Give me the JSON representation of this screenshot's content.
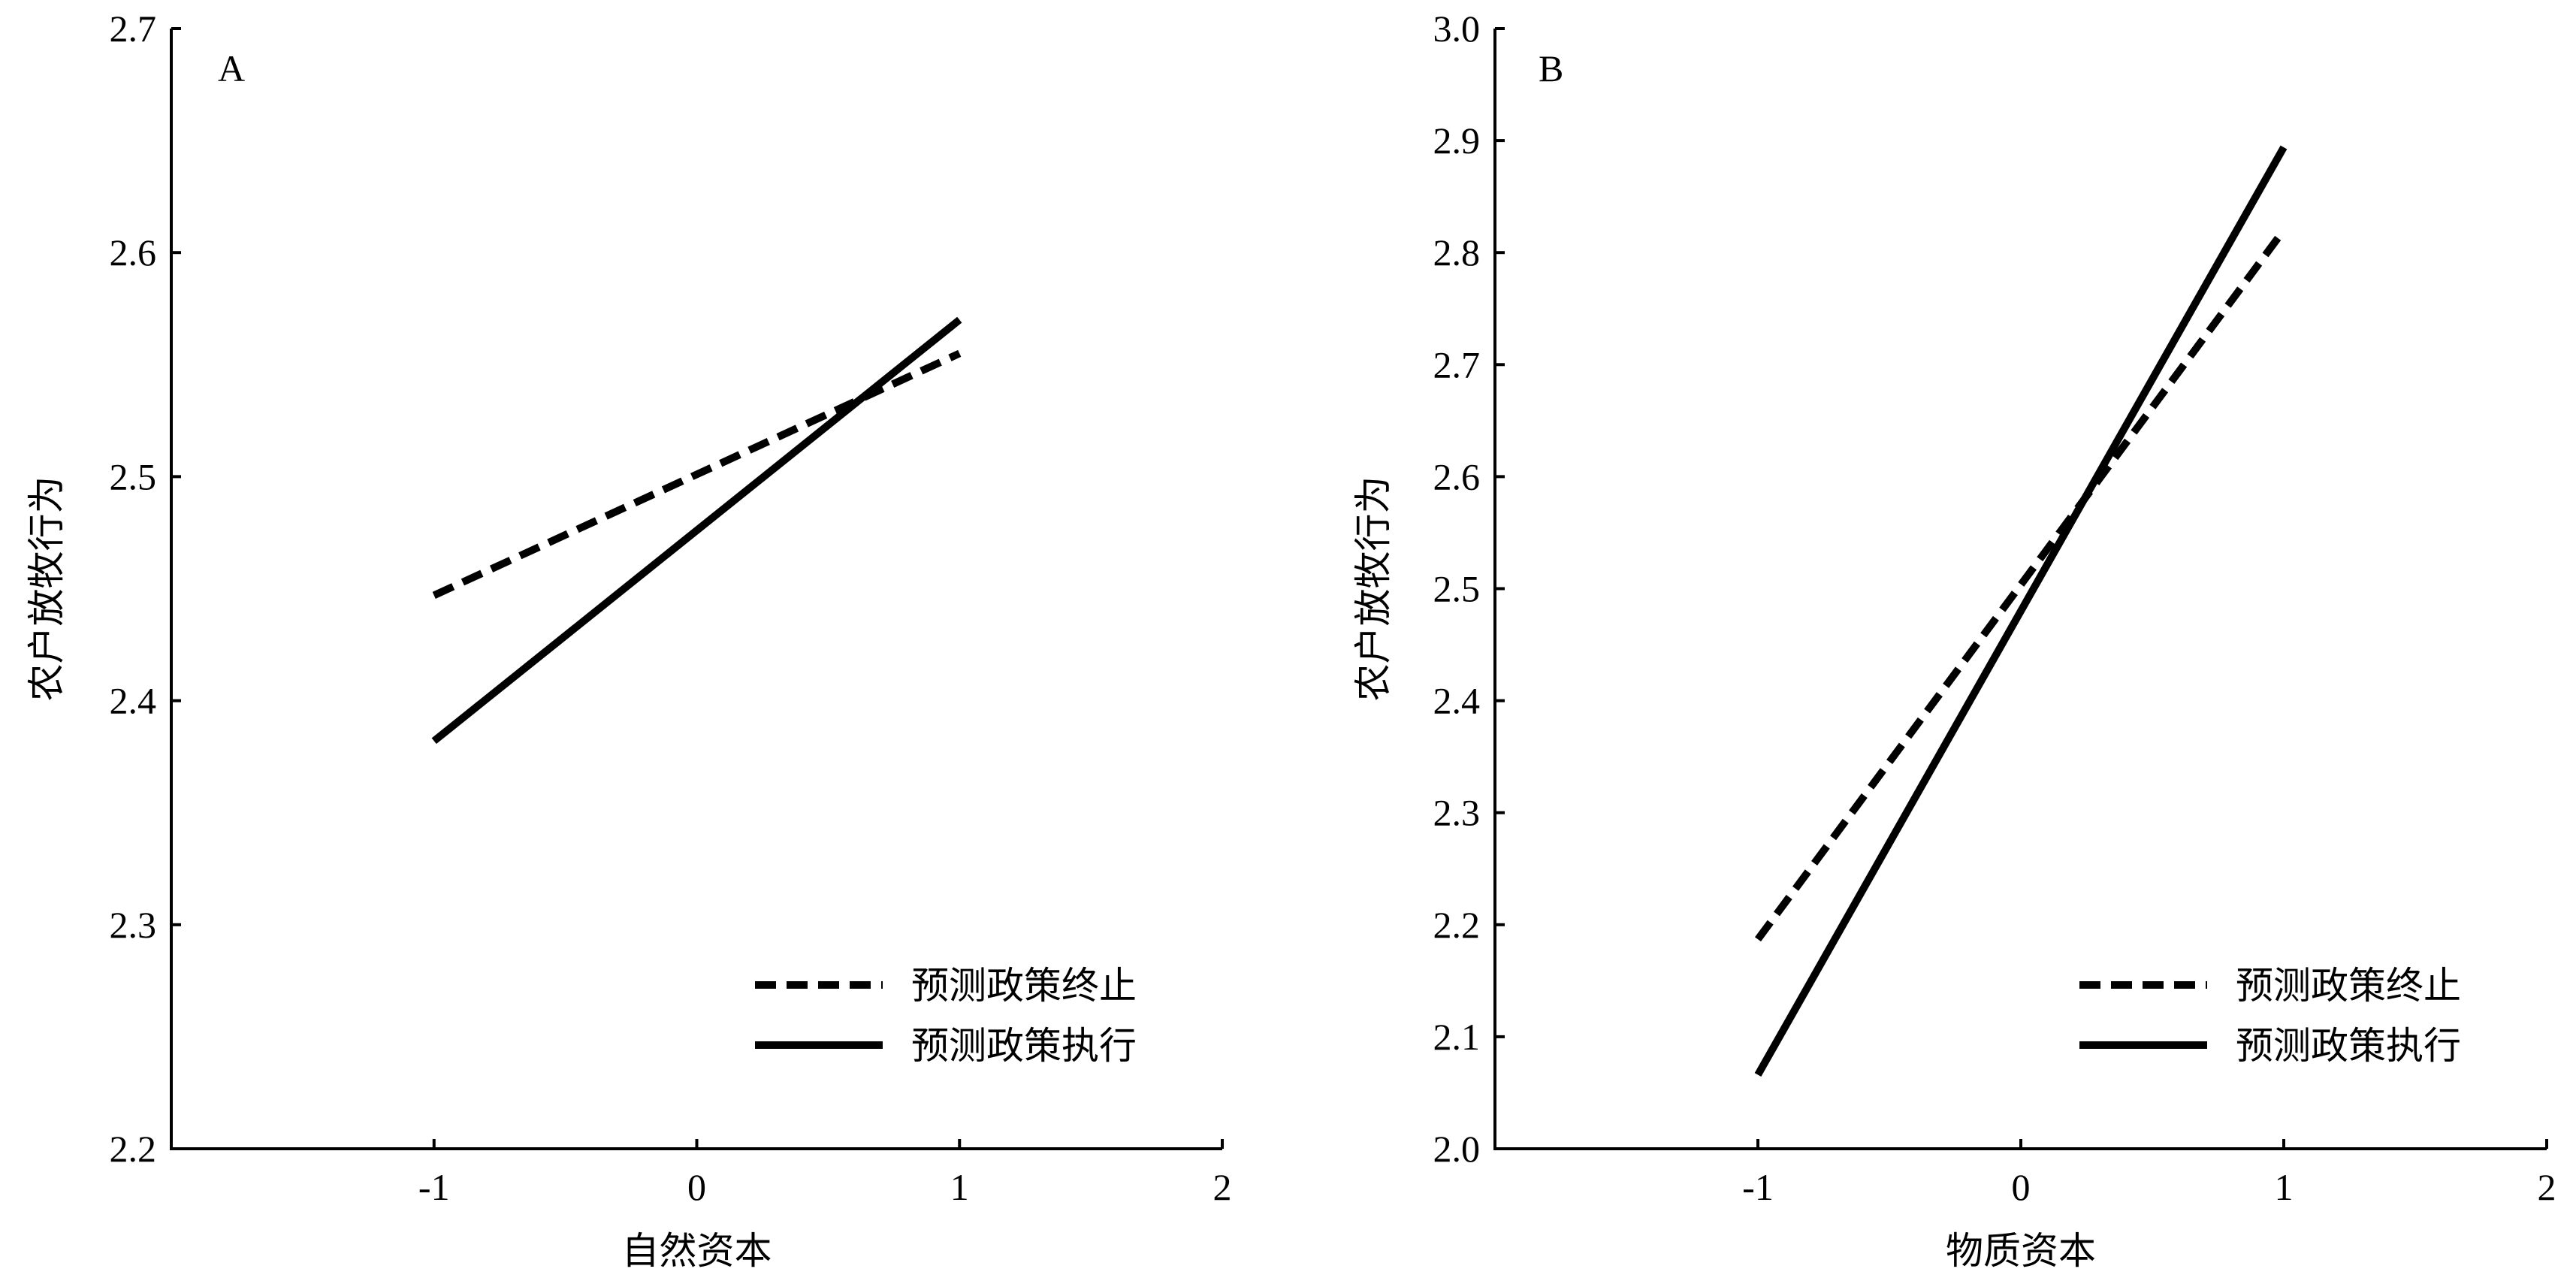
{
  "chart_data": [
    {
      "type": "line",
      "panel_label": "A",
      "xlabel": "自然资本",
      "ylabel": "农户放牧行为",
      "xlim": [
        -2,
        2
      ],
      "ylim": [
        2.2,
        2.7
      ],
      "x_ticks": [
        -1,
        0,
        1,
        2
      ],
      "x_tick_labels": [
        "-1",
        "0",
        "1",
        "2"
      ],
      "y_ticks": [
        2.2,
        2.3,
        2.4,
        2.5,
        2.6,
        2.7
      ],
      "y_tick_labels": [
        "2.2",
        "2.3",
        "2.4",
        "2.5",
        "2.6",
        "2.7"
      ],
      "grid": false,
      "legend_position": "bottom-right",
      "series": [
        {
          "name": "预测政策终止",
          "style": "dashed",
          "x": [
            -1,
            1
          ],
          "y": [
            2.447,
            2.555
          ]
        },
        {
          "name": "预测政策执行",
          "style": "solid",
          "x": [
            -1,
            1
          ],
          "y": [
            2.382,
            2.57
          ]
        }
      ]
    },
    {
      "type": "line",
      "panel_label": "B",
      "xlabel": "物质资本",
      "ylabel": "农户放牧行为",
      "xlim": [
        -2,
        2
      ],
      "ylim": [
        2.0,
        3.0
      ],
      "x_ticks": [
        -1,
        0,
        1,
        2
      ],
      "x_tick_labels": [
        "-1",
        "0",
        "1",
        "2"
      ],
      "y_ticks": [
        2.0,
        2.1,
        2.2,
        2.3,
        2.4,
        2.5,
        2.6,
        2.7,
        2.8,
        2.9,
        3.0
      ],
      "y_tick_labels": [
        "2.0",
        "2.1",
        "2.2",
        "2.3",
        "2.4",
        "2.5",
        "2.6",
        "2.7",
        "2.8",
        "2.9",
        "3.0"
      ],
      "grid": false,
      "legend_position": "bottom-right",
      "series": [
        {
          "name": "预测政策终止",
          "style": "dashed",
          "x": [
            -1,
            1
          ],
          "y": [
            2.187,
            2.82
          ]
        },
        {
          "name": "预测政策执行",
          "style": "solid",
          "x": [
            -1,
            1
          ],
          "y": [
            2.066,
            2.894
          ]
        }
      ]
    }
  ]
}
